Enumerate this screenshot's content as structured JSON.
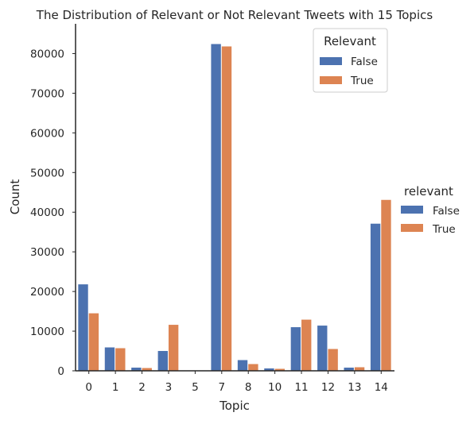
{
  "chart_data": {
    "type": "bar",
    "title": "The Distribution of Relevant or Not Relevant Tweets with 15 Topics",
    "xlabel": "Topic",
    "ylabel": "Count",
    "categories": [
      "0",
      "1",
      "2",
      "3",
      "5",
      "7",
      "8",
      "10",
      "11",
      "12",
      "13",
      "14"
    ],
    "ylim": [
      0,
      87500
    ],
    "yticks": [
      0,
      10000,
      20000,
      30000,
      40000,
      50000,
      60000,
      70000,
      80000
    ],
    "grid": false,
    "series": [
      {
        "name": "False",
        "color": "#4c72b0",
        "values": [
          21800,
          5900,
          800,
          5000,
          0,
          82400,
          2700,
          600,
          11000,
          11400,
          800,
          37100
        ]
      },
      {
        "name": "True",
        "color": "#dd8452",
        "values": [
          14500,
          5700,
          700,
          11600,
          0,
          81800,
          1700,
          500,
          12900,
          5500,
          900,
          43100
        ]
      }
    ],
    "legends": [
      {
        "title": "Relevant",
        "placement": "upper-right-inside",
        "entries": [
          "False",
          "True"
        ]
      },
      {
        "title": "relevant",
        "placement": "right-outside",
        "entries": [
          "False",
          "True"
        ]
      }
    ]
  }
}
